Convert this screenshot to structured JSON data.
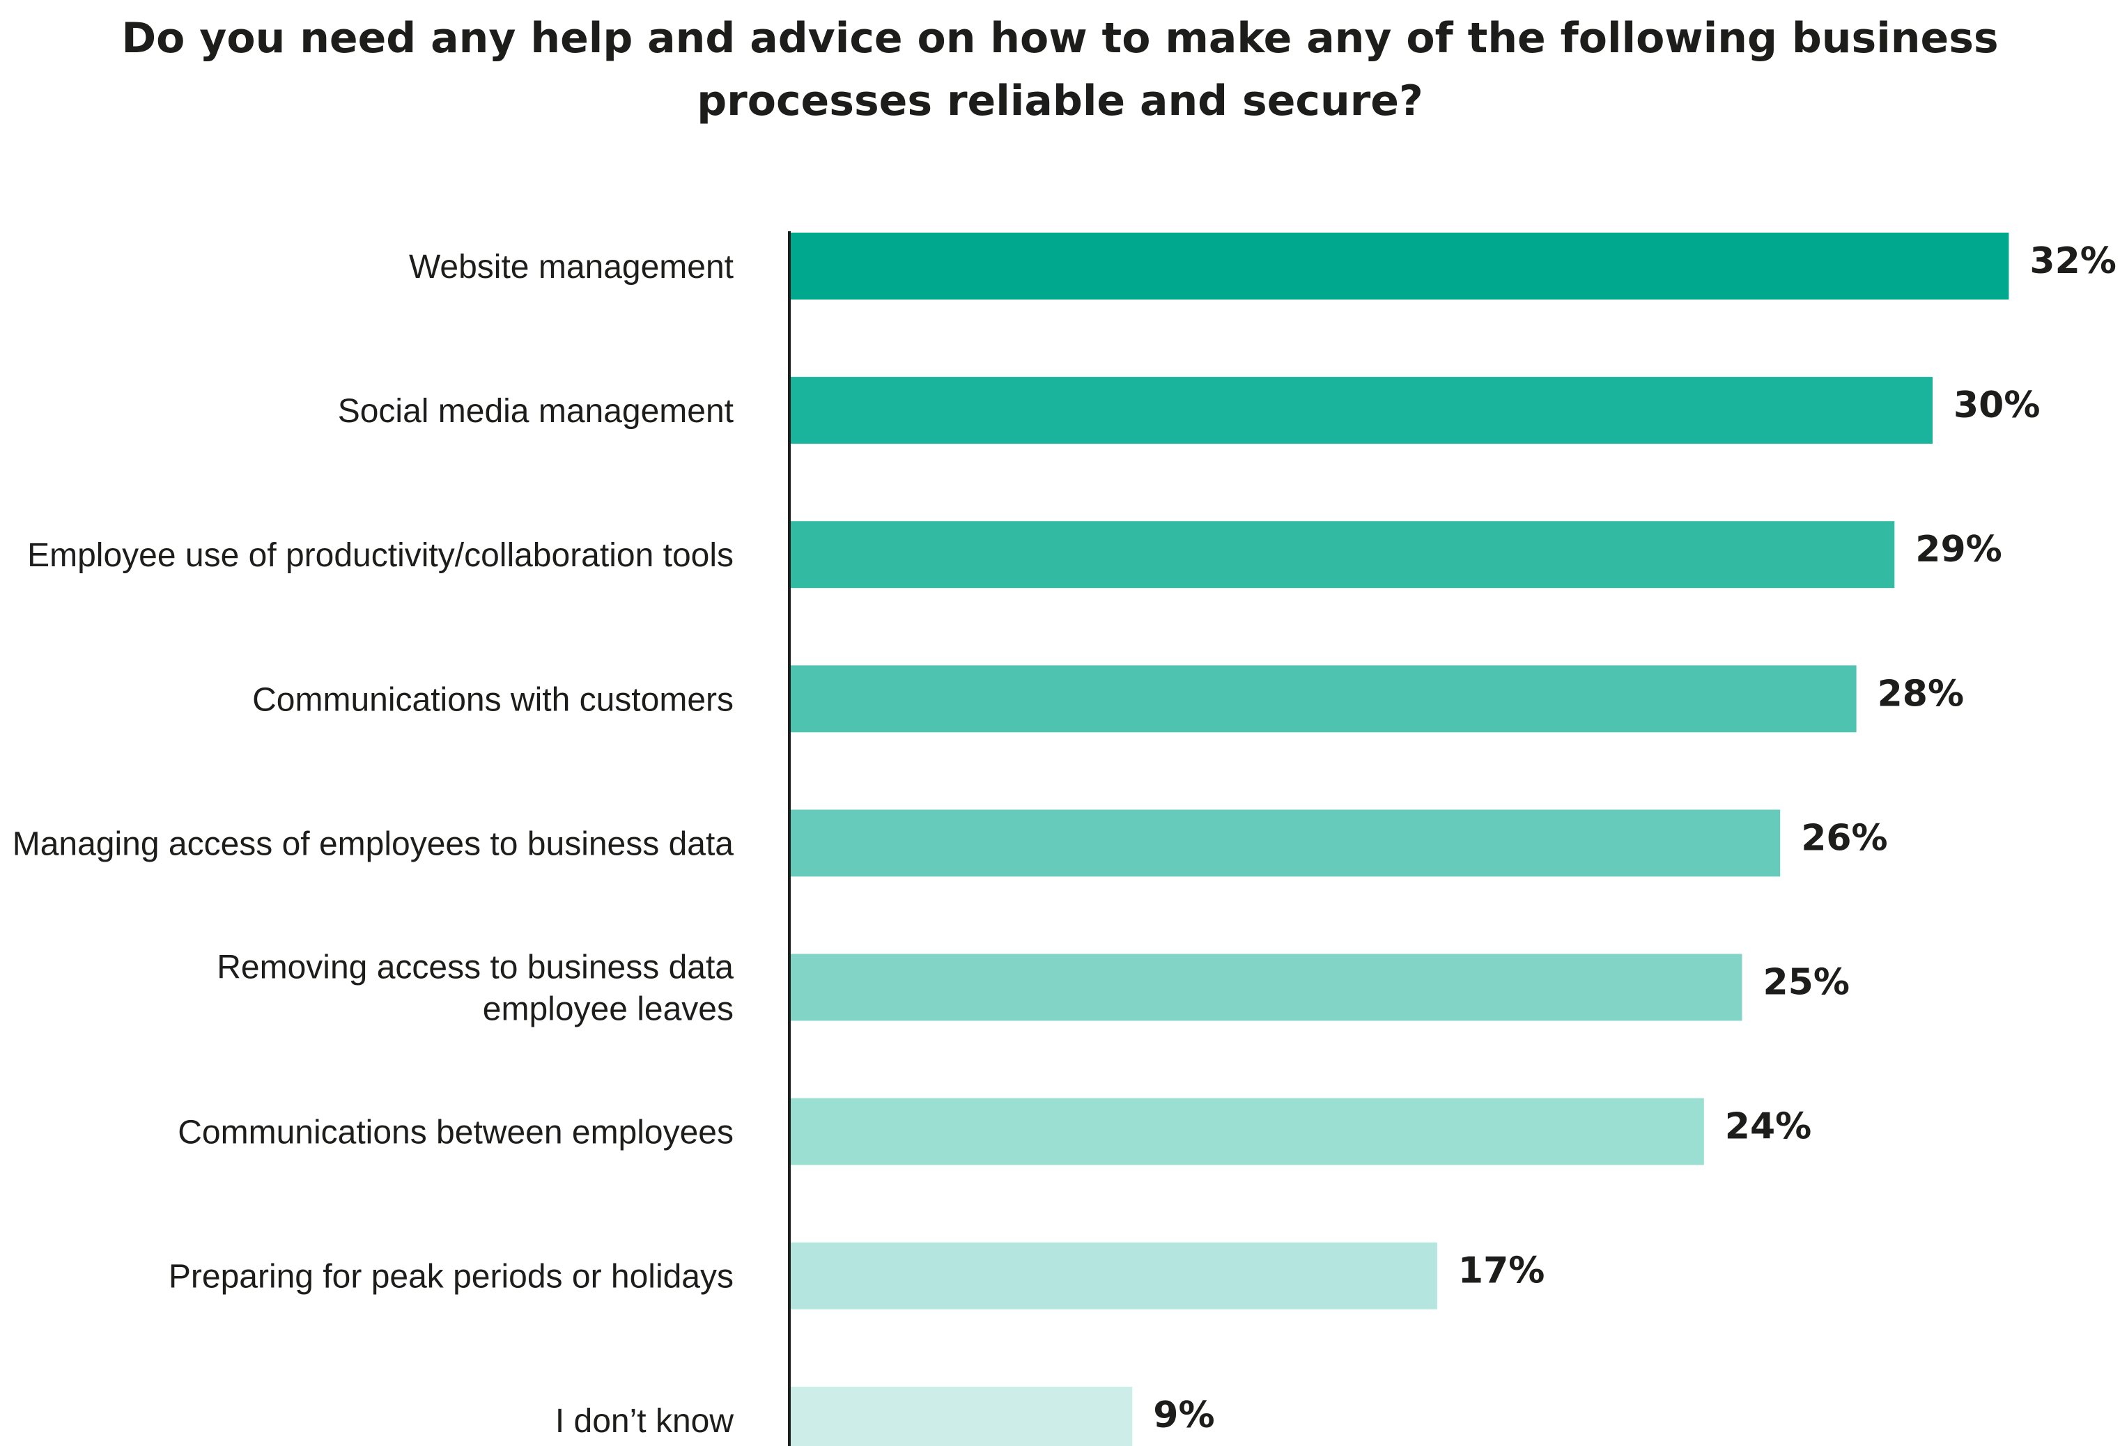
{
  "chart_data": {
    "type": "bar",
    "orientation": "horizontal",
    "title_lines": [
      "Do you need any help and advice on how to make any of the following business",
      "processes reliable and secure?"
    ],
    "categories": [
      [
        "Website management"
      ],
      [
        "Social media management"
      ],
      [
        "Employee use of productivity/collaboration tools"
      ],
      [
        "Communications with customers"
      ],
      [
        "Managing access of employees to business data"
      ],
      [
        "Removing access to business data",
        "employee leaves"
      ],
      [
        "Communications between employees"
      ],
      [
        "Preparing for peak periods or holidays"
      ],
      [
        "I don’t know"
      ]
    ],
    "values": [
      32,
      30,
      29,
      28,
      26,
      25,
      24,
      17,
      9
    ],
    "value_labels": [
      "32%",
      "30%",
      "29%",
      "28%",
      "26%",
      "25%",
      "24%",
      "17%",
      "9%"
    ],
    "unit": "%",
    "grid": false,
    "legend": "none",
    "colors": [
      "#00a88e",
      "#1ab39b",
      "#33baa3",
      "#4ec3af",
      "#66cbba",
      "#82d5c6",
      "#9bdfd3",
      "#b4e6df",
      "#cdeee8"
    ],
    "axis_color": "#1d1d1b",
    "text_color": "#1d1d1b"
  }
}
